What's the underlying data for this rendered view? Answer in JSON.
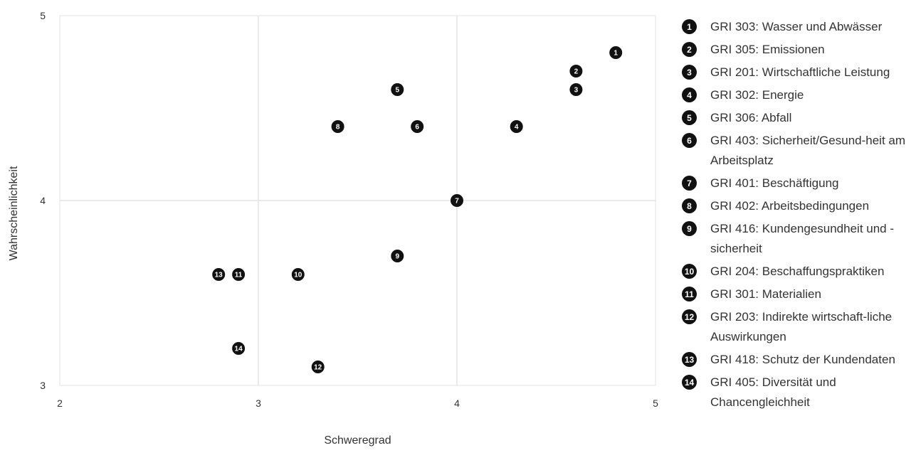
{
  "chart_data": {
    "type": "scatter",
    "title": "",
    "xlabel": "Schweregrad",
    "ylabel": "Wahrscheinlichkeit",
    "xlim": [
      2,
      5
    ],
    "ylim": [
      3,
      5
    ],
    "x_ticks": [
      "2",
      "3",
      "4",
      "5"
    ],
    "y_ticks": [
      "3",
      "4",
      "5"
    ],
    "grid": true,
    "legend_position": "right",
    "marker_color": "#111111",
    "grid_color": "#e3e3e3",
    "points": [
      {
        "id": "1",
        "x": 4.8,
        "y": 4.8,
        "label": "GRI 303: Wasser und Abwässer"
      },
      {
        "id": "2",
        "x": 4.6,
        "y": 4.7,
        "label": "GRI 305: Emissionen"
      },
      {
        "id": "3",
        "x": 4.6,
        "y": 4.6,
        "label": "GRI 201: Wirtschaftliche Leistung"
      },
      {
        "id": "4",
        "x": 4.3,
        "y": 4.4,
        "label": "GRI 302: Energie"
      },
      {
        "id": "5",
        "x": 3.7,
        "y": 4.6,
        "label": "GRI 306: Abfall"
      },
      {
        "id": "6",
        "x": 3.8,
        "y": 4.4,
        "label": "GRI 403: Sicherheit/Gesundheit am Arbeitsplatz"
      },
      {
        "id": "7",
        "x": 4.0,
        "y": 4.0,
        "label": "GRI 401: Beschäftigung"
      },
      {
        "id": "8",
        "x": 3.4,
        "y": 4.4,
        "label": "GRI 402: Arbeitsbedingungen"
      },
      {
        "id": "9",
        "x": 3.7,
        "y": 3.7,
        "label": "GRI 416: Kundengesundheit und -sicherheit"
      },
      {
        "id": "10",
        "x": 3.2,
        "y": 3.6,
        "label": "GRI 204: Beschaffungspraktiken"
      },
      {
        "id": "11",
        "x": 2.9,
        "y": 3.6,
        "label": "GRI 301: Materialien"
      },
      {
        "id": "12",
        "x": 3.3,
        "y": 3.1,
        "label": "GRI 203: Indirekte wirtschaftliche Auswirkungen"
      },
      {
        "id": "13",
        "x": 2.8,
        "y": 3.6,
        "label": "GRI 418: Schutz der Kundendaten"
      },
      {
        "id": "14",
        "x": 2.9,
        "y": 3.2,
        "label": "GRI 405: Diversität und Chancengleichheit"
      }
    ]
  },
  "legend": [
    {
      "num": "1",
      "text": "GRI 303: Wasser und Abwässer"
    },
    {
      "num": "2",
      "text": "GRI 305: Emissionen"
    },
    {
      "num": "3",
      "text": "GRI 201: Wirtschaftliche Leistung"
    },
    {
      "num": "4",
      "text": "GRI 302: Energie"
    },
    {
      "num": "5",
      "text": "GRI 306: Abfall"
    },
    {
      "num": "6",
      "text": "GRI 403: Sicherheit/Gesund-heit am Arbeitsplatz"
    },
    {
      "num": "7",
      "text": "GRI 401: Beschäftigung"
    },
    {
      "num": "8",
      "text": "GRI 402: Arbeitsbedingungen"
    },
    {
      "num": "9",
      "text": "GRI 416: Kundengesundheit und -sicherheit"
    },
    {
      "num": "10",
      "text": "GRI 204: Beschaffungspraktiken"
    },
    {
      "num": "11",
      "text": "GRI 301: Materialien"
    },
    {
      "num": "12",
      "text": "GRI 203: Indirekte wirtschaft-liche Auswirkungen"
    },
    {
      "num": "13",
      "text": "GRI 418: Schutz der Kundendaten"
    },
    {
      "num": "14",
      "text": "GRI 405: Diversität und Chancengleichheit"
    }
  ]
}
